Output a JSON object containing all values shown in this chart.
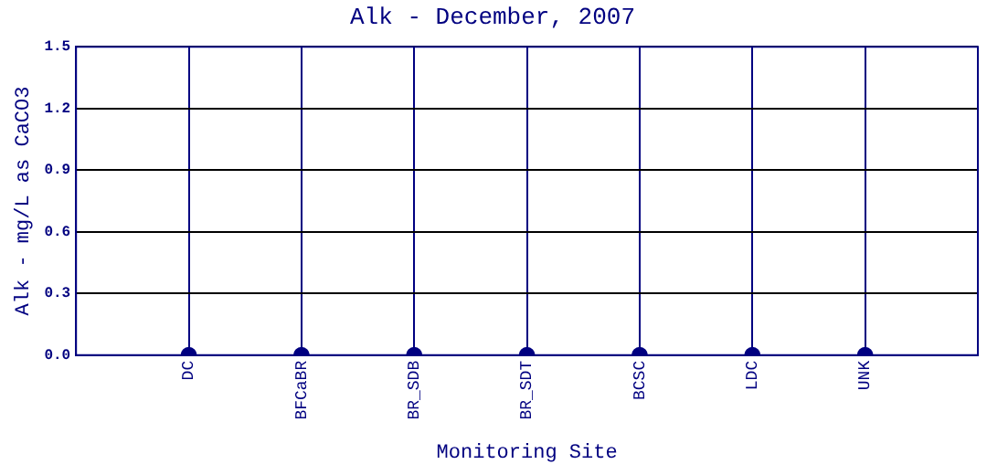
{
  "chart_data": {
    "type": "scatter",
    "title": "Alk - December, 2007",
    "xlabel": "Monitoring Site",
    "ylabel": "Alk - mg/L as CaCO3",
    "categories": [
      "DC",
      "BFCaBR",
      "BR_SDB",
      "BR_SDT",
      "BCSC",
      "LDC",
      "UNK"
    ],
    "values": [
      0,
      0,
      0,
      0,
      0,
      0,
      0
    ],
    "color": "#000080",
    "ylim": [
      0,
      1.5
    ],
    "yticks": [
      {
        "value": 0,
        "label": "0.0"
      },
      0.3,
      0.6,
      0.9,
      1.2,
      1.5
    ],
    "grid": true,
    "legend": false,
    "marker": "circle"
  }
}
